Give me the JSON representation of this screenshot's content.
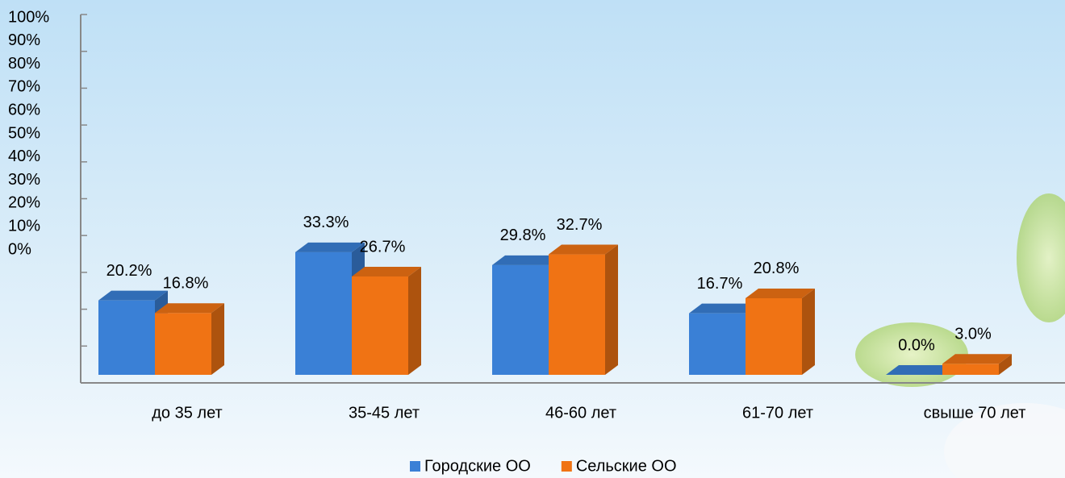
{
  "chart_data": {
    "type": "bar3d",
    "categories": [
      "до 35 лет",
      "35-45 лет",
      "46-60 лет",
      "61-70 лет",
      "свыше 70 лет"
    ],
    "series": [
      {
        "name": "Городские ОО",
        "color": "#3a80d6",
        "values": [
          20.2,
          33.3,
          29.8,
          16.7,
          0.0
        ],
        "value_labels": [
          "20.2%",
          "33.3%",
          "29.8%",
          "16.7%",
          "0.0%"
        ]
      },
      {
        "name": "Сельские ОО",
        "color": "#f07314",
        "values": [
          16.8,
          26.7,
          32.7,
          20.8,
          3.0
        ],
        "value_labels": [
          "16.8%",
          "26.7%",
          "32.7%",
          "20.8%",
          "3.0%"
        ]
      }
    ],
    "ylim": [
      0,
      100
    ],
    "yticks": [
      {
        "value": 0,
        "label": "0%"
      },
      {
        "value": 10,
        "label": "10%"
      },
      {
        "value": 20,
        "label": "20%"
      },
      {
        "value": 30,
        "label": "30%"
      },
      {
        "value": 40,
        "label": "40%"
      },
      {
        "value": 50,
        "label": "50%"
      },
      {
        "value": 60,
        "label": "60%"
      },
      {
        "value": 70,
        "label": "70%"
      },
      {
        "value": 80,
        "label": "80%"
      },
      {
        "value": 90,
        "label": "90%"
      },
      {
        "value": 100,
        "label": "100%"
      }
    ]
  }
}
